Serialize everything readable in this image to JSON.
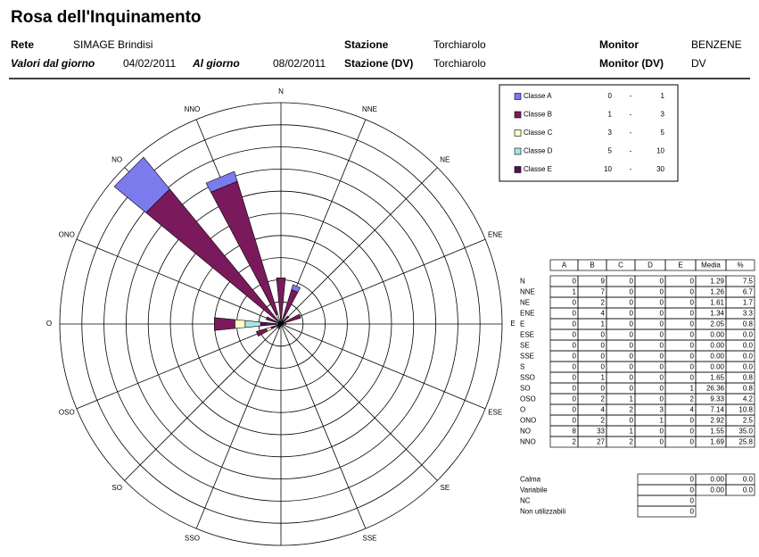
{
  "header": {
    "title": "Rosa dell'Inquinamento",
    "rete_label": "Rete",
    "rete": "SIMAGE Brindisi",
    "stazione_label": "Stazione",
    "stazione": "Torchiarolo",
    "monitor_label": "Monitor",
    "monitor": "BENZENE",
    "dal_label": "Valori dal giorno",
    "dal": "04/02/2011",
    "al_label": "Al giorno",
    "al": "08/02/2011",
    "stazione_dv_label": "Stazione (DV)",
    "stazione_dv": "Torchiarolo",
    "monitor_dv_label": "Monitor (DV)",
    "monitor_dv": "DV"
  },
  "legend": [
    {
      "name": "Classe A",
      "from": "0",
      "to": "1",
      "color": "#7b7bee"
    },
    {
      "name": "Classe B",
      "from": "1",
      "to": "3",
      "color": "#7a1a5c"
    },
    {
      "name": "Classe C",
      "from": "3",
      "to": "5",
      "color": "#ffffc4"
    },
    {
      "name": "Classe D",
      "from": "5",
      "to": "10",
      "color": "#a8e4e4"
    },
    {
      "name": "Classe E",
      "from": "10",
      "to": "30",
      "color": "#54105a"
    }
  ],
  "legend_dash": "-",
  "rose": {
    "rmax": 43
  },
  "table": {
    "columns": [
      "A",
      "B",
      "C",
      "D",
      "E",
      "Media",
      "%"
    ],
    "rows": [
      {
        "dir": "N",
        "counts": [
          0,
          9,
          0,
          0,
          0
        ],
        "media": "1.29",
        "pct": "7.5"
      },
      {
        "dir": "NNE",
        "counts": [
          1,
          7,
          0,
          0,
          0
        ],
        "media": "1.26",
        "pct": "6.7"
      },
      {
        "dir": "NE",
        "counts": [
          0,
          2,
          0,
          0,
          0
        ],
        "media": "1.61",
        "pct": "1.7"
      },
      {
        "dir": "ENE",
        "counts": [
          0,
          4,
          0,
          0,
          0
        ],
        "media": "1.34",
        "pct": "3.3"
      },
      {
        "dir": "E",
        "counts": [
          0,
          1,
          0,
          0,
          0
        ],
        "media": "2.05",
        "pct": "0.8"
      },
      {
        "dir": "ESE",
        "counts": [
          0,
          0,
          0,
          0,
          0
        ],
        "media": "0.00",
        "pct": "0.0"
      },
      {
        "dir": "SE",
        "counts": [
          0,
          0,
          0,
          0,
          0
        ],
        "media": "0.00",
        "pct": "0.0"
      },
      {
        "dir": "SSE",
        "counts": [
          0,
          0,
          0,
          0,
          0
        ],
        "media": "0.00",
        "pct": "0.0"
      },
      {
        "dir": "S",
        "counts": [
          0,
          0,
          0,
          0,
          0
        ],
        "media": "0.00",
        "pct": "0.0"
      },
      {
        "dir": "SSO",
        "counts": [
          0,
          1,
          0,
          0,
          0
        ],
        "media": "1.65",
        "pct": "0.8"
      },
      {
        "dir": "SO",
        "counts": [
          0,
          0,
          0,
          0,
          1
        ],
        "media": "26.36",
        "pct": "0.8"
      },
      {
        "dir": "OSO",
        "counts": [
          0,
          2,
          1,
          0,
          2
        ],
        "media": "9.33",
        "pct": "4.2"
      },
      {
        "dir": "O",
        "counts": [
          0,
          4,
          2,
          3,
          4
        ],
        "media": "7.14",
        "pct": "10.8"
      },
      {
        "dir": "ONO",
        "counts": [
          0,
          2,
          0,
          1,
          0
        ],
        "media": "2.92",
        "pct": "2.5"
      },
      {
        "dir": "NO",
        "counts": [
          8,
          33,
          1,
          0,
          0
        ],
        "media": "1.55",
        "pct": "35.0"
      },
      {
        "dir": "NNO",
        "counts": [
          2,
          27,
          2,
          0,
          0
        ],
        "media": "1.69",
        "pct": "25.8"
      }
    ],
    "footer": [
      {
        "name": "Calma",
        "count": 0,
        "media": "0.00",
        "pct": "0.0"
      },
      {
        "name": "Variabile",
        "count": 0,
        "media": "0.00",
        "pct": "0.0"
      },
      {
        "name": "NC",
        "count": 0
      },
      {
        "name": "Non utilizzabili",
        "count": 0
      }
    ]
  }
}
